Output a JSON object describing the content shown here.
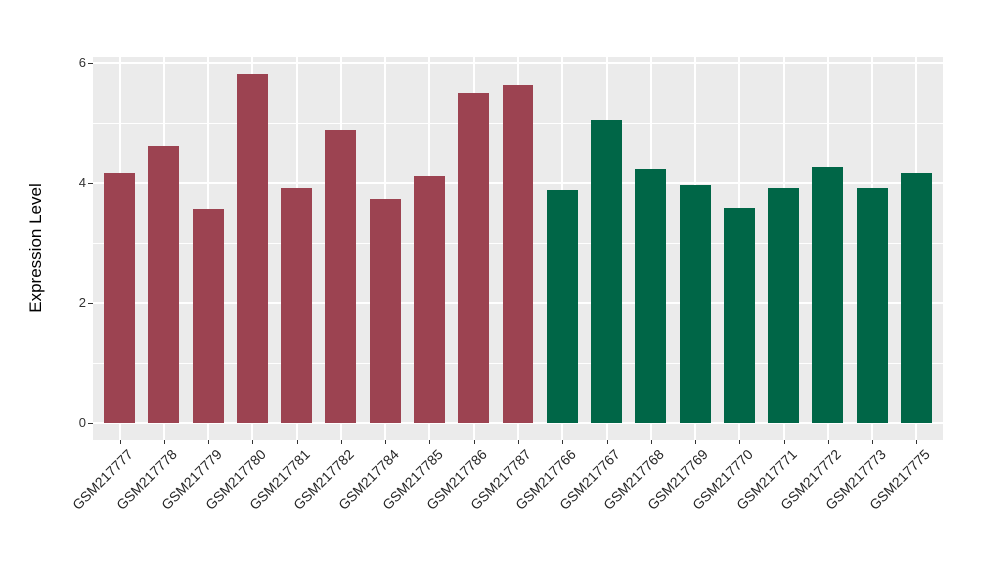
{
  "figure": {
    "background": "#FFFFFF",
    "panel_bg": "#EBEBEB",
    "grid_color": "#FFFFFF",
    "axis_text_color": "#333333",
    "axis_title_color": "#000000"
  },
  "chart_data": {
    "type": "bar",
    "title": "",
    "xlabel": "",
    "ylabel": "Expression Level",
    "ylim": [
      -0.28,
      6.11
    ],
    "yticks": [
      0,
      2,
      4,
      6
    ],
    "yticks_minor": [
      1,
      3,
      5
    ],
    "grid": true,
    "legend": "none",
    "categories": [
      "GSM217777",
      "GSM217778",
      "GSM217779",
      "GSM217780",
      "GSM217781",
      "GSM217782",
      "GSM217784",
      "GSM217785",
      "GSM217786",
      "GSM217787",
      "GSM217766",
      "GSM217767",
      "GSM217768",
      "GSM217769",
      "GSM217770",
      "GSM217771",
      "GSM217772",
      "GSM217773",
      "GSM217775"
    ],
    "values": [
      4.17,
      4.61,
      3.56,
      5.82,
      3.91,
      4.88,
      3.74,
      4.12,
      5.5,
      5.63,
      3.88,
      5.05,
      4.23,
      3.97,
      3.59,
      3.91,
      4.27,
      3.91,
      4.16
    ],
    "groups": [
      "group1",
      "group1",
      "group1",
      "group1",
      "group1",
      "group1",
      "group1",
      "group1",
      "group1",
      "group1",
      "group2",
      "group2",
      "group2",
      "group2",
      "group2",
      "group2",
      "group2",
      "group2",
      "group2"
    ],
    "group_colors": {
      "group1": "#9C4351",
      "group2": "#006647"
    }
  }
}
